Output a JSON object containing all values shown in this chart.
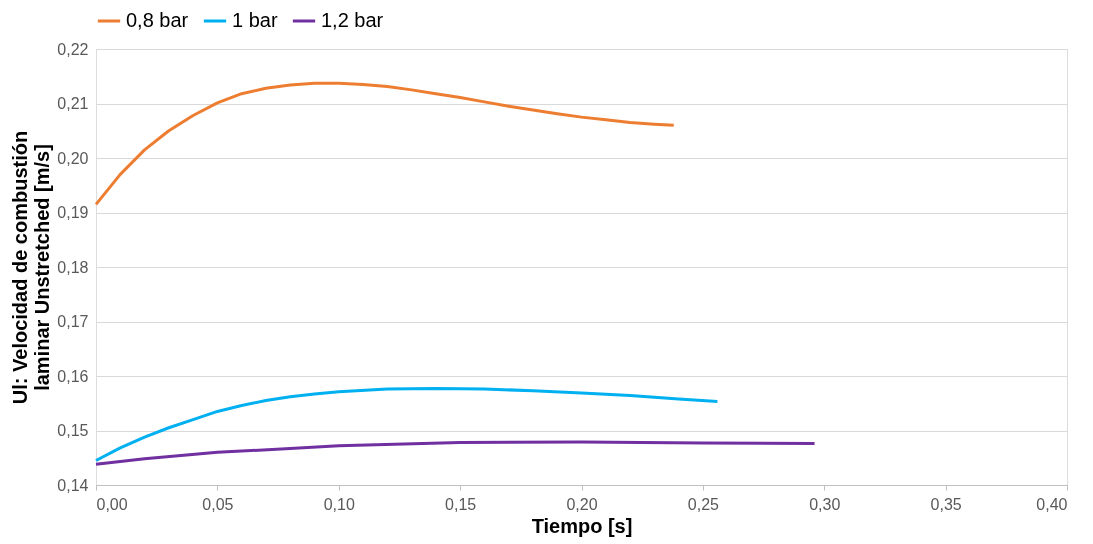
{
  "chart_data": {
    "type": "line",
    "xlabel": "Tiempo [s]",
    "ylabel": "Ul: Velocidad de combustión\nlaminar Unstretched [m/s]",
    "xlim": [
      0,
      0.4
    ],
    "ylim": [
      0.14,
      0.22
    ],
    "xticks": [
      {
        "value": 0,
        "label": "0,00"
      },
      {
        "value": 0.05,
        "label": "0,05"
      },
      {
        "value": 0.1,
        "label": "0,10"
      },
      {
        "value": 0.15,
        "label": "0,15"
      },
      {
        "value": 0.2,
        "label": "0,20"
      },
      {
        "value": 0.25,
        "label": "0,25"
      },
      {
        "value": 0.3,
        "label": "0,30"
      },
      {
        "value": 0.35,
        "label": "0,35"
      },
      {
        "value": 0.4,
        "label": "0,40"
      }
    ],
    "yticks": [
      {
        "value": 0.14,
        "label": "0,14"
      },
      {
        "value": 0.15,
        "label": "0,15"
      },
      {
        "value": 0.16,
        "label": "0,16"
      },
      {
        "value": 0.17,
        "label": "0,17"
      },
      {
        "value": 0.18,
        "label": "0,18"
      },
      {
        "value": 0.19,
        "label": "0,19"
      },
      {
        "value": 0.2,
        "label": "0,20"
      },
      {
        "value": 0.21,
        "label": "0,21"
      },
      {
        "value": 0.22,
        "label": "0,22"
      }
    ],
    "grid": "y",
    "legend": "top",
    "marker": "none",
    "line_style": "solid",
    "series": [
      {
        "name": "0,8 bar",
        "color": "#ed7d31",
        "x": [
          0,
          0.01,
          0.02,
          0.03,
          0.04,
          0.05,
          0.06,
          0.07,
          0.08,
          0.09,
          0.1,
          0.11,
          0.12,
          0.13,
          0.14,
          0.15,
          0.16,
          0.17,
          0.18,
          0.19,
          0.2,
          0.21,
          0.22,
          0.23,
          0.238
        ],
        "values": [
          0.1915,
          0.197,
          0.2015,
          0.205,
          0.2078,
          0.2101,
          0.2118,
          0.2128,
          0.2134,
          0.2137,
          0.2137,
          0.2135,
          0.2131,
          0.2125,
          0.2118,
          0.2111,
          0.2103,
          0.2095,
          0.2088,
          0.2081,
          0.2075,
          0.207,
          0.2065,
          0.2062,
          0.206
        ]
      },
      {
        "name": "1 bar",
        "color": "#00b0f0",
        "x": [
          0,
          0.01,
          0.02,
          0.03,
          0.04,
          0.05,
          0.06,
          0.07,
          0.08,
          0.09,
          0.1,
          0.12,
          0.14,
          0.16,
          0.18,
          0.2,
          0.22,
          0.24,
          0.256
        ],
        "values": [
          0.1445,
          0.1468,
          0.1488,
          0.1505,
          0.152,
          0.1535,
          0.1546,
          0.1555,
          0.1562,
          0.1567,
          0.1571,
          0.1576,
          0.1577,
          0.1576,
          0.1573,
          0.1569,
          0.1564,
          0.1558,
          0.1553
        ]
      },
      {
        "name": "1,2 bar",
        "color": "#7030a0",
        "x": [
          0,
          0.02,
          0.05,
          0.08,
          0.1,
          0.15,
          0.2,
          0.25,
          0.296
        ],
        "values": [
          0.1438,
          0.1448,
          0.146,
          0.1467,
          0.1472,
          0.1478,
          0.1479,
          0.1477,
          0.1476
        ]
      }
    ]
  }
}
